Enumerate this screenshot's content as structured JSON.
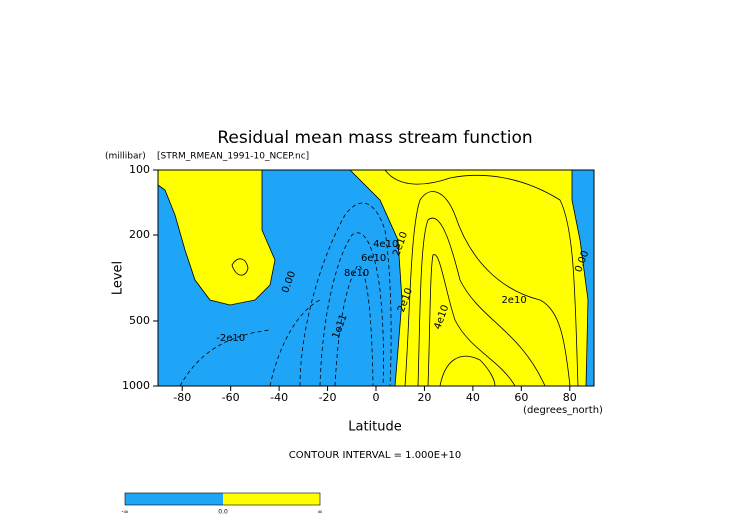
{
  "chart_data": {
    "type": "contour",
    "title": "Residual mean mass stream function",
    "subtitle": "[STRM_RMEAN_1991-10_NCEP.nc]",
    "y_units": "(millibar)",
    "y_label": "Level",
    "x_label": "Latitude",
    "x_units": "(degrees_north)",
    "contour_interval": "CONTOUR INTERVAL = 1.000E+10",
    "xlim": [
      -90,
      90
    ],
    "xticks": [
      -80,
      -60,
      -40,
      -20,
      0,
      20,
      40,
      60,
      80
    ],
    "ylim": [
      1000,
      100
    ],
    "yticks": [
      100,
      200,
      500,
      1000
    ],
    "ylog": true,
    "negative_color": "#1ea5f8",
    "positive_color": "#ffff00",
    "contour_labels": [
      {
        "text": "0.00",
        "x": -36,
        "y": 330
      },
      {
        "text": "-2e10",
        "x": -60,
        "y": 600
      },
      {
        "text": "1e11",
        "x": -15,
        "y": 530
      },
      {
        "text": "8e10",
        "x": -8,
        "y": 300
      },
      {
        "text": "6e10",
        "x": -1,
        "y": 255
      },
      {
        "text": "4e10",
        "x": 4,
        "y": 220
      },
      {
        "text": "2e10",
        "x": 10,
        "y": 220
      },
      {
        "text": "2e10",
        "x": 12,
        "y": 400
      },
      {
        "text": "4e10",
        "x": 27,
        "y": 480
      },
      {
        "text": "2e10",
        "x": 57,
        "y": 400
      },
      {
        "text": "0.00",
        "x": 85,
        "y": 265
      }
    ],
    "colorbar_labels": [
      "-∞",
      "0.0",
      "∞"
    ]
  }
}
